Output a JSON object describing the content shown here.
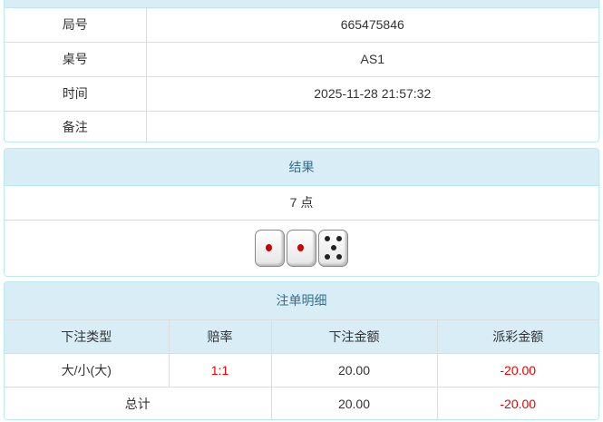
{
  "info": {
    "rows": [
      {
        "label": "局号",
        "value": "665475846"
      },
      {
        "label": "桌号",
        "value": "AS1"
      },
      {
        "label": "时间",
        "value": "2025-11-28 21:57:32"
      },
      {
        "label": "备注",
        "value": ""
      }
    ]
  },
  "result": {
    "title": "结果",
    "points": "7 点",
    "dice": [
      1,
      1,
      5
    ]
  },
  "bets": {
    "title": "注单明细",
    "headers": [
      "下注类型",
      "赔率",
      "下注金额",
      "派彩金额"
    ],
    "rows": [
      {
        "type": "大/小(大)",
        "odds": "1:1",
        "amount": "20.00",
        "payout": "-20.00"
      }
    ],
    "total": {
      "label": "总计",
      "amount": "20.00",
      "payout": "-20.00"
    },
    "colors": {
      "negative": "#ee0000",
      "header_bg": "#d9edf7"
    }
  }
}
